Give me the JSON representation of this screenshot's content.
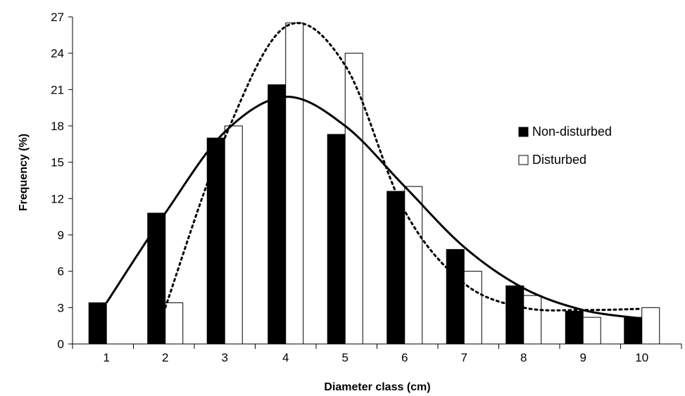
{
  "chart_data": {
    "type": "bar",
    "xlabel": "Diameter class (cm)",
    "ylabel": "Frequency (%)",
    "categories": [
      "1",
      "2",
      "3",
      "4",
      "5",
      "6",
      "7",
      "8",
      "9",
      "10"
    ],
    "ylim": [
      0,
      27
    ],
    "yticks": [
      0,
      3,
      6,
      9,
      12,
      15,
      18,
      21,
      24,
      27
    ],
    "grid": false,
    "legend_position": "right",
    "series": [
      {
        "name": "Non-disturbed",
        "fill": "#000000",
        "values": [
          3.4,
          10.8,
          17.0,
          21.4,
          17.3,
          12.6,
          7.8,
          4.8,
          2.7,
          2.2
        ],
        "trend": [
          3.4,
          10.8,
          17.5,
          20.4,
          18.0,
          13.0,
          8.0,
          4.6,
          2.8,
          2.1
        ],
        "trend_style": "solid"
      },
      {
        "name": "Disturbed",
        "fill": "#ffffff",
        "values": [
          0,
          3.4,
          18.0,
          26.5,
          24.0,
          13.0,
          6.0,
          4.0,
          2.2,
          3.0
        ],
        "trend": [
          null,
          3.0,
          17.0,
          26.2,
          23.0,
          11.0,
          5.0,
          3.0,
          2.8,
          2.9
        ],
        "trend_style": "dotted"
      }
    ]
  }
}
